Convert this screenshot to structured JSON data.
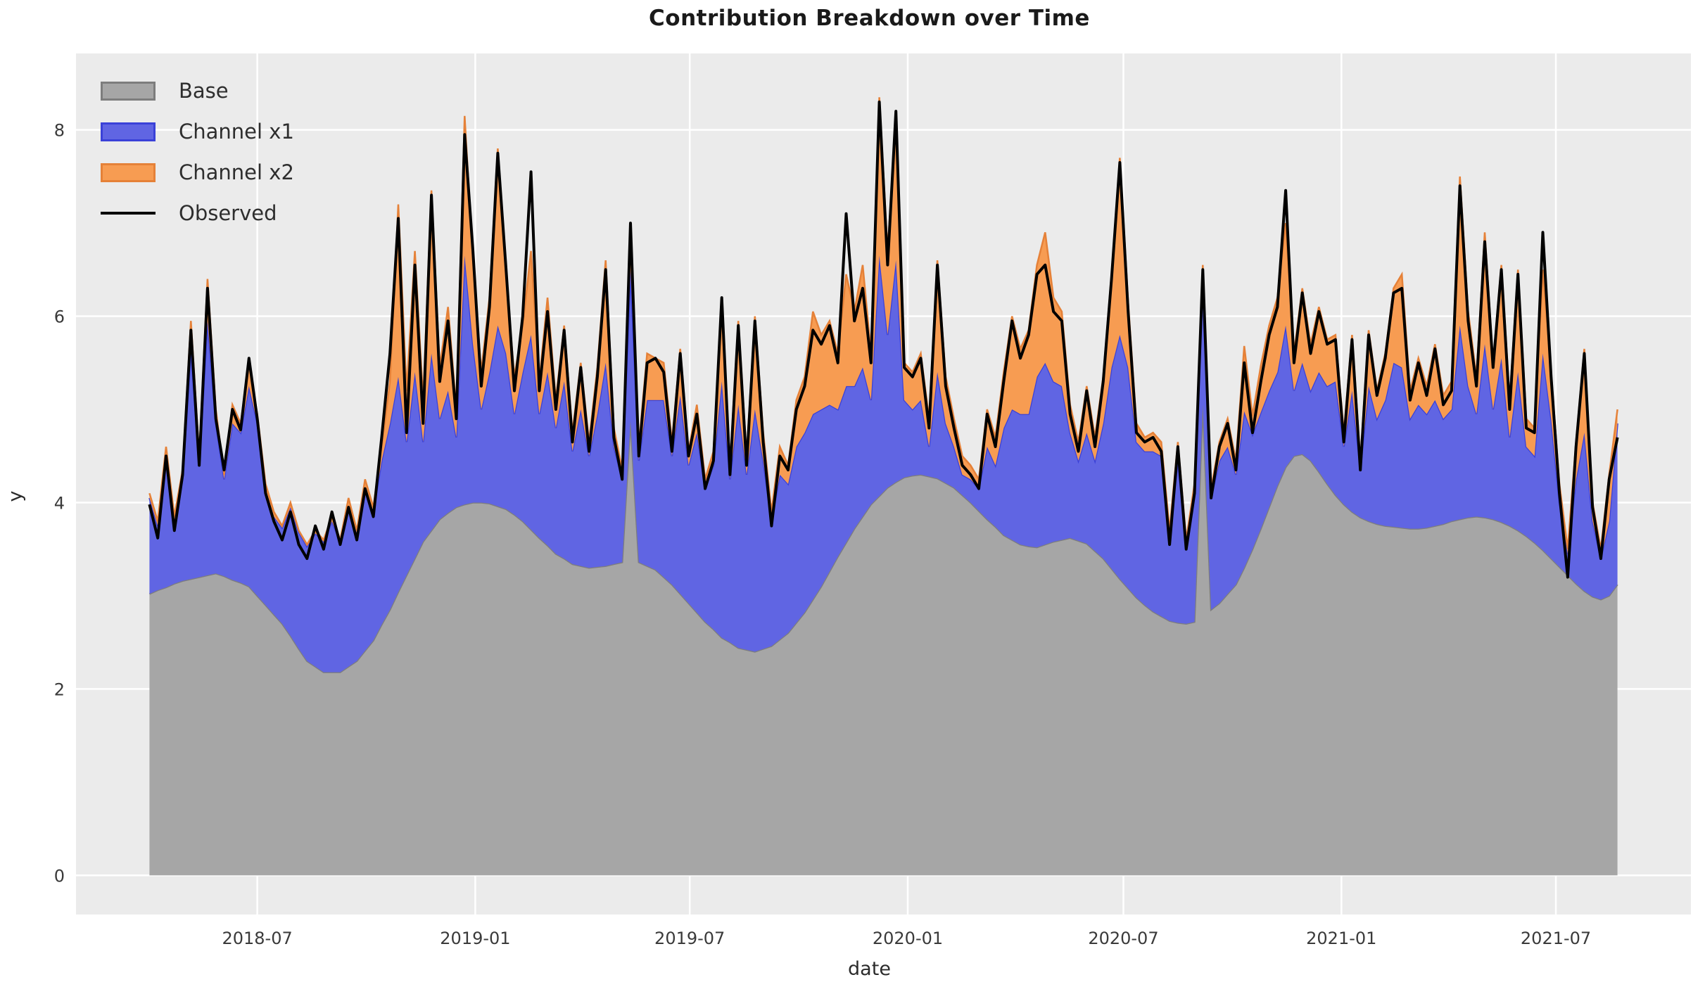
{
  "figure": {
    "title": "Contribution Breakdown over Time"
  },
  "axes": {
    "xlabel": "date",
    "ylabel": "y",
    "plot_bg_color": "#ebebeb",
    "grid_color": "#ffffff"
  },
  "chart_data": {
    "type": "area",
    "subtype": "stacked-area-with-observed-line",
    "title": "Contribution Breakdown over Time",
    "xlabel": "date",
    "ylabel": "y",
    "grid": true,
    "legend_position": "upper left",
    "x_start": "2018-04-01",
    "x_step_days": 7,
    "n_points": 178,
    "ylim": [
      -0.42,
      8.82
    ],
    "y_ticks": [
      0,
      2,
      4,
      6,
      8
    ],
    "x_ticks": [
      {
        "date": "2018-07-01",
        "label": "2018-07"
      },
      {
        "date": "2019-01-01",
        "label": "2019-01"
      },
      {
        "date": "2019-07-01",
        "label": "2019-07"
      },
      {
        "date": "2020-01-01",
        "label": "2020-01"
      },
      {
        "date": "2020-07-01",
        "label": "2020-07"
      },
      {
        "date": "2021-01-01",
        "label": "2021-01"
      },
      {
        "date": "2021-07-01",
        "label": "2021-07"
      }
    ],
    "series": [
      {
        "name": "Base",
        "type": "area",
        "color": "#a6a6a6",
        "edge_color": "#7d7d7d",
        "values": [
          3.02,
          3.06,
          3.09,
          3.13,
          3.16,
          3.18,
          3.2,
          3.22,
          3.24,
          3.21,
          3.17,
          3.14,
          3.1,
          3.0,
          2.9,
          2.8,
          2.7,
          2.57,
          2.43,
          2.3,
          2.24,
          2.18,
          2.18,
          2.18,
          2.24,
          2.3,
          2.41,
          2.52,
          2.69,
          2.85,
          3.04,
          3.22,
          3.4,
          3.58,
          3.7,
          3.82,
          3.89,
          3.95,
          3.98,
          4.0,
          4.0,
          3.99,
          3.96,
          3.93,
          3.87,
          3.8,
          3.71,
          3.62,
          3.54,
          3.45,
          3.4,
          3.34,
          3.32,
          3.3,
          3.31,
          3.32,
          3.34,
          3.36,
          4.88,
          3.36,
          3.32,
          3.28,
          3.2,
          3.12,
          3.02,
          2.92,
          2.82,
          2.72,
          2.64,
          2.55,
          2.5,
          2.44,
          2.42,
          2.4,
          2.43,
          2.46,
          2.53,
          2.6,
          2.71,
          2.82,
          2.96,
          3.1,
          3.26,
          3.42,
          3.57,
          3.72,
          3.85,
          3.98,
          4.07,
          4.16,
          4.22,
          4.27,
          4.29,
          4.3,
          4.28,
          4.26,
          4.21,
          4.16,
          4.08,
          4.0,
          3.91,
          3.82,
          3.74,
          3.65,
          3.6,
          3.55,
          3.53,
          3.52,
          3.55,
          3.58,
          3.6,
          3.62,
          3.59,
          3.56,
          3.48,
          3.4,
          3.29,
          3.18,
          3.08,
          2.98,
          2.9,
          2.83,
          2.78,
          2.73,
          2.71,
          2.7,
          2.72,
          5.05,
          2.85,
          2.92,
          3.02,
          3.12,
          3.3,
          3.5,
          3.72,
          3.95,
          4.18,
          4.38,
          4.5,
          4.52,
          4.45,
          4.33,
          4.2,
          4.08,
          3.98,
          3.9,
          3.84,
          3.8,
          3.77,
          3.75,
          3.74,
          3.73,
          3.72,
          3.72,
          3.73,
          3.75,
          3.77,
          3.8,
          3.82,
          3.84,
          3.85,
          3.84,
          3.82,
          3.79,
          3.75,
          3.7,
          3.64,
          3.57,
          3.49,
          3.4,
          3.31,
          3.22,
          3.13,
          3.05,
          2.99,
          2.96,
          3.0,
          3.12
        ]
      },
      {
        "name": "Channel x1",
        "type": "area",
        "color": "#6065e3",
        "edge_color": "#3a41d8",
        "values": [
          1.03,
          0.69,
          1.41,
          0.67,
          1.09,
          2.47,
          1.2,
          2.73,
          1.61,
          1.04,
          1.68,
          1.61,
          2.15,
          1.85,
          1.25,
          1.05,
          1.03,
          1.38,
          1.25,
          1.23,
          1.43,
          1.4,
          1.62,
          1.4,
          1.73,
          1.37,
          1.74,
          1.38,
          1.76,
          2.0,
          2.31,
          1.43,
          2.0,
          1.07,
          1.9,
          1.08,
          1.31,
          0.75,
          2.67,
          1.7,
          1.0,
          1.41,
          1.94,
          1.67,
          1.08,
          1.6,
          2.09,
          1.33,
          1.86,
          1.35,
          1.9,
          1.21,
          1.68,
          1.2,
          1.64,
          2.18,
          1.26,
          0.89,
          1.62,
          1.09,
          1.78,
          1.82,
          1.9,
          1.38,
          2.13,
          1.48,
          1.93,
          1.43,
          1.76,
          2.75,
          1.75,
          2.61,
          1.88,
          2.6,
          2.02,
          1.34,
          1.77,
          1.6,
          1.89,
          1.93,
          1.99,
          1.9,
          1.79,
          1.58,
          1.68,
          1.53,
          1.6,
          1.12,
          2.58,
          1.64,
          2.38,
          0.83,
          0.71,
          0.8,
          0.32,
          1.14,
          0.64,
          0.44,
          0.22,
          0.25,
          0.24,
          0.78,
          0.66,
          1.15,
          1.4,
          1.4,
          1.42,
          1.83,
          1.95,
          1.72,
          1.65,
          1.13,
          0.86,
          1.19,
          0.97,
          1.45,
          2.16,
          2.62,
          2.37,
          1.67,
          1.65,
          1.72,
          1.72,
          0.92,
          1.74,
          0.85,
          1.38,
          1.3,
          1.2,
          1.53,
          1.58,
          1.18,
          1.68,
          1.23,
          1.25,
          1.25,
          1.22,
          1.52,
          0.7,
          0.98,
          0.75,
          1.07,
          1.05,
          1.22,
          0.62,
          1.3,
          0.51,
          1.45,
          1.13,
          1.35,
          1.76,
          1.72,
          1.18,
          1.33,
          1.22,
          1.35,
          1.13,
          1.2,
          2.08,
          1.41,
          1.1,
          1.86,
          1.18,
          1.76,
          0.95,
          1.7,
          0.96,
          0.93,
          2.11,
          1.5,
          0.69,
          0.23,
          1.12,
          1.7,
          0.81,
          0.44,
          0.8,
          1.73
        ]
      },
      {
        "name": "Channel x2",
        "type": "area",
        "color": "#f79c52",
        "edge_color": "#e58138",
        "values": [
          0.05,
          0.05,
          0.1,
          0.05,
          0.1,
          0.3,
          0.1,
          0.45,
          0.15,
          0.05,
          0.2,
          0.1,
          0.25,
          0.1,
          0.05,
          0.05,
          0.02,
          0.05,
          0.02,
          0.02,
          0.03,
          0.02,
          0.05,
          0.02,
          0.08,
          0.03,
          0.1,
          0.05,
          0.15,
          0.45,
          1.85,
          0.55,
          1.3,
          0.45,
          1.75,
          0.55,
          0.9,
          0.3,
          1.5,
          0.9,
          0.4,
          0.8,
          1.9,
          0.8,
          0.4,
          0.5,
          0.9,
          0.35,
          0.8,
          0.3,
          0.6,
          0.2,
          0.5,
          0.15,
          0.5,
          1.1,
          0.2,
          0.1,
          0.5,
          0.15,
          0.5,
          0.45,
          0.4,
          0.15,
          0.5,
          0.15,
          0.3,
          0.1,
          0.15,
          0.9,
          0.15,
          0.9,
          0.2,
          1.0,
          0.3,
          0.1,
          0.3,
          0.2,
          0.5,
          0.6,
          1.1,
          0.8,
          0.9,
          0.6,
          1.2,
          0.8,
          1.1,
          0.5,
          1.7,
          0.9,
          1.5,
          0.4,
          0.4,
          0.5,
          0.3,
          1.2,
          0.5,
          0.3,
          0.2,
          0.15,
          0.1,
          0.4,
          0.3,
          0.6,
          1.0,
          0.7,
          0.9,
          1.2,
          1.4,
          0.9,
          0.8,
          0.3,
          0.2,
          0.5,
          0.25,
          0.5,
          1.0,
          1.9,
          0.7,
          0.2,
          0.15,
          0.2,
          0.15,
          0.05,
          0.2,
          0.05,
          0.1,
          0.2,
          0.1,
          0.2,
          0.3,
          0.15,
          0.7,
          0.2,
          0.5,
          0.7,
          0.8,
          1.1,
          0.4,
          0.8,
          0.5,
          0.7,
          0.5,
          0.5,
          0.15,
          0.6,
          0.1,
          0.6,
          0.3,
          0.5,
          0.8,
          1.0,
          0.3,
          0.5,
          0.3,
          0.6,
          0.25,
          0.3,
          1.6,
          0.8,
          0.4,
          1.2,
          0.5,
          1.0,
          0.4,
          1.1,
          0.3,
          0.3,
          0.9,
          0.5,
          0.2,
          0.05,
          0.4,
          0.9,
          0.2,
          0.1,
          0.5,
          0.15
        ]
      },
      {
        "name": "Observed",
        "type": "line",
        "color": "#000000",
        "values": [
          3.98,
          3.62,
          4.5,
          3.7,
          4.3,
          5.85,
          4.4,
          6.3,
          4.9,
          4.35,
          5.0,
          4.78,
          5.55,
          4.9,
          4.1,
          3.8,
          3.6,
          3.9,
          3.55,
          3.4,
          3.75,
          3.5,
          3.9,
          3.55,
          3.95,
          3.6,
          4.15,
          3.85,
          4.7,
          5.6,
          7.05,
          4.75,
          6.55,
          4.85,
          7.3,
          5.3,
          5.95,
          4.9,
          7.95,
          6.7,
          5.25,
          6.1,
          7.75,
          6.5,
          5.2,
          6.0,
          7.55,
          5.2,
          6.05,
          5.0,
          5.85,
          4.65,
          5.45,
          4.55,
          5.35,
          6.5,
          4.7,
          4.25,
          7.0,
          4.5,
          5.5,
          5.55,
          5.4,
          4.55,
          5.6,
          4.5,
          4.95,
          4.15,
          4.45,
          6.2,
          4.3,
          5.9,
          4.4,
          5.95,
          4.65,
          3.75,
          4.5,
          4.35,
          5.0,
          5.25,
          5.85,
          5.7,
          5.9,
          5.5,
          7.1,
          5.95,
          6.3,
          5.5,
          8.3,
          6.55,
          8.2,
          5.45,
          5.35,
          5.55,
          4.8,
          6.55,
          5.25,
          4.8,
          4.4,
          4.3,
          4.15,
          4.95,
          4.6,
          5.3,
          5.95,
          5.55,
          5.8,
          6.45,
          6.55,
          6.05,
          5.95,
          4.95,
          4.55,
          5.2,
          4.6,
          5.3,
          6.4,
          7.65,
          6.05,
          4.75,
          4.65,
          4.7,
          4.55,
          3.55,
          4.6,
          3.5,
          4.1,
          6.5,
          4.05,
          4.6,
          4.85,
          4.35,
          5.5,
          4.75,
          5.3,
          5.8,
          6.1,
          7.35,
          5.5,
          6.25,
          5.6,
          6.05,
          5.7,
          5.75,
          4.65,
          5.75,
          4.35,
          5.8,
          5.15,
          5.55,
          6.25,
          6.3,
          5.1,
          5.5,
          5.15,
          5.65,
          5.05,
          5.2,
          7.4,
          5.95,
          5.25,
          6.8,
          5.45,
          6.5,
          5.0,
          6.45,
          4.8,
          4.75,
          6.9,
          5.35,
          4.1,
          3.2,
          4.6,
          5.6,
          3.95,
          3.4,
          4.25,
          4.7
        ]
      }
    ]
  }
}
